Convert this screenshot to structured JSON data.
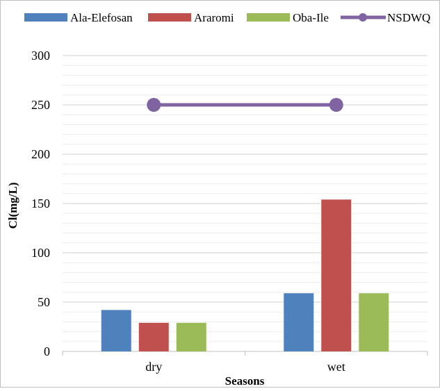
{
  "chart_data": {
    "type": "bar",
    "categories": [
      "dry",
      "wet"
    ],
    "series": [
      {
        "name": "Ala-Elefosan",
        "type": "bar",
        "color": "#4F81BD",
        "values": [
          42,
          59
        ]
      },
      {
        "name": "Araromi",
        "type": "bar",
        "color": "#C0504D",
        "values": [
          29,
          154
        ]
      },
      {
        "name": "Oba-Ile",
        "type": "bar",
        "color": "#9BBB59",
        "values": [
          29,
          59
        ]
      },
      {
        "name": "NSDWQ",
        "type": "line",
        "color": "#8064A2",
        "values": [
          250,
          250
        ]
      }
    ],
    "xlabel": "Seasons",
    "ylabel": "Cl(mg/L)",
    "ylim": [
      0,
      300
    ],
    "yticks": [
      0,
      50,
      100,
      150,
      200,
      250,
      300
    ],
    "minor_gridlines": true,
    "legend_position": "top"
  }
}
